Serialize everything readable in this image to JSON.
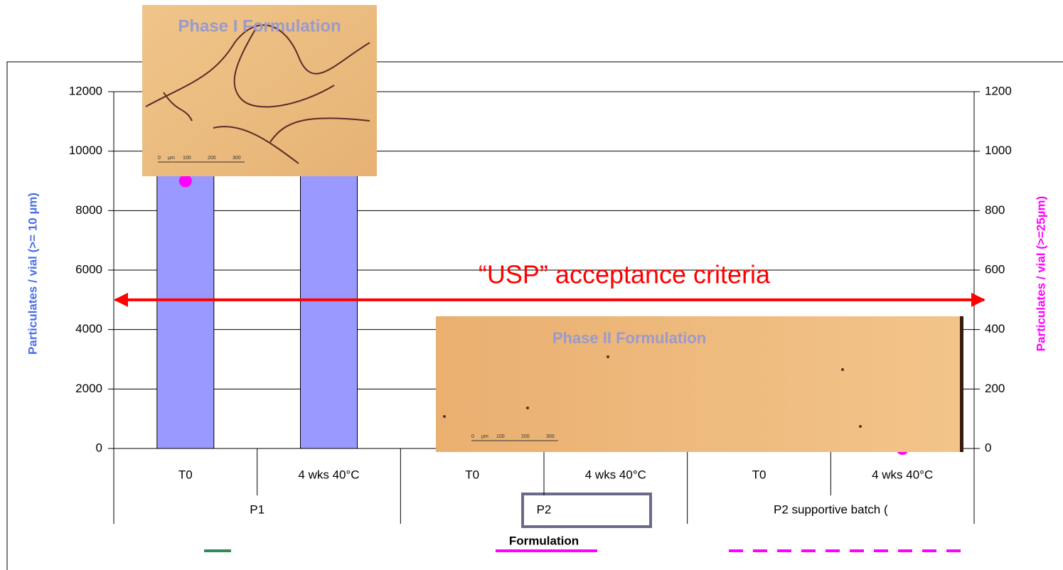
{
  "chart_data": {
    "type": "bar",
    "categories": [
      "T0",
      "4 wks 40°C",
      "T0",
      "4 wks 40°C",
      "T0",
      "4 wks 40°C"
    ],
    "group_labels": [
      "P1",
      "P2",
      "P2 supportive batch ("
    ],
    "x_label": "Formulation",
    "y_label": "Particulates / vial (>= 10 µm)",
    "y2_label": "Particulates / vial (>=25µm)",
    "series": [
      {
        "color": "#9999ff",
        "values": [
          12000,
          12000,
          null,
          null,
          null,
          null
        ]
      },
      {
        "color": "#ff00ff",
        "axis": "y2",
        "values": [
          900,
          null,
          null,
          null,
          null,
          0
        ]
      }
    ],
    "ylim": [
      0,
      12000
    ],
    "yticks": [
      0,
      2000,
      4000,
      6000,
      8000,
      10000,
      12000
    ],
    "y2lim": [
      0,
      1200
    ],
    "y2ticks": [
      0,
      200,
      400,
      600,
      800,
      1000,
      1200
    ],
    "grid": true,
    "annotation": {
      "text": "“USP” acceptance criteria",
      "value": 5000,
      "color": "#ff0000"
    },
    "images": [
      {
        "label": "Phase I  Formulation",
        "scale_labels": [
          "0",
          "µm",
          "100",
          "200",
          "300"
        ]
      },
      {
        "label": "Phase II Formulation",
        "scale_labels": [
          "0",
          "µm",
          "100",
          "200",
          "300"
        ]
      }
    ]
  }
}
